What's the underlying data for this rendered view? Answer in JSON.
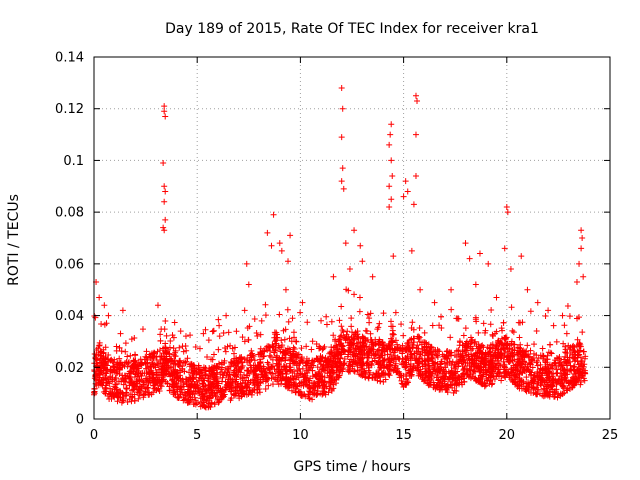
{
  "chart_data": {
    "type": "scatter",
    "title": "Day 189 of 2015, Rate Of TEC Index for receiver kra1",
    "xlabel": "GPS time / hours",
    "ylabel": "ROTI / TECUs",
    "xlim": [
      0,
      25
    ],
    "ylim": [
      0,
      0.14
    ],
    "x_ticks": [
      "0",
      "5",
      "10",
      "15",
      "20",
      "25"
    ],
    "y_ticks": [
      "0",
      "0.02",
      "0.04",
      "0.06",
      "0.08",
      "0.1",
      "0.12",
      "0.14"
    ],
    "grid": true,
    "marker": "+",
    "color": "#ff0000",
    "series": [
      {
        "name": "ROTI",
        "baseline_profile": [
          [
            0,
            0.017
          ],
          [
            0.3,
            0.022
          ],
          [
            0.6,
            0.016
          ],
          [
            1.2,
            0.014
          ],
          [
            2.0,
            0.015
          ],
          [
            3.0,
            0.018
          ],
          [
            3.5,
            0.02
          ],
          [
            4.2,
            0.015
          ],
          [
            5.0,
            0.013
          ],
          [
            5.5,
            0.012
          ],
          [
            6.0,
            0.014
          ],
          [
            7.0,
            0.016
          ],
          [
            8.0,
            0.018
          ],
          [
            8.8,
            0.022
          ],
          [
            9.5,
            0.019
          ],
          [
            10.5,
            0.015
          ],
          [
            11.5,
            0.018
          ],
          [
            12.1,
            0.027
          ],
          [
            13.0,
            0.024
          ],
          [
            14.0,
            0.022
          ],
          [
            14.5,
            0.026
          ],
          [
            15.0,
            0.02
          ],
          [
            15.6,
            0.025
          ],
          [
            16.5,
            0.019
          ],
          [
            17.5,
            0.018
          ],
          [
            18.2,
            0.024
          ],
          [
            19.0,
            0.02
          ],
          [
            20.0,
            0.024
          ],
          [
            20.5,
            0.02
          ],
          [
            21.5,
            0.017
          ],
          [
            22.5,
            0.016
          ],
          [
            23.5,
            0.022
          ],
          [
            23.8,
            0.018
          ]
        ],
        "outliers": [
          [
            0.1,
            0.053
          ],
          [
            0.25,
            0.047
          ],
          [
            0.5,
            0.044
          ],
          [
            0.7,
            0.04
          ],
          [
            1.4,
            0.042
          ],
          [
            3.1,
            0.044
          ],
          [
            3.4,
            0.121
          ],
          [
            3.4,
            0.119
          ],
          [
            3.45,
            0.117
          ],
          [
            3.35,
            0.099
          ],
          [
            3.4,
            0.09
          ],
          [
            3.45,
            0.088
          ],
          [
            3.4,
            0.084
          ],
          [
            3.45,
            0.077
          ],
          [
            3.35,
            0.074
          ],
          [
            3.4,
            0.073
          ],
          [
            4.2,
            0.034
          ],
          [
            5.3,
            0.033
          ],
          [
            6.4,
            0.04
          ],
          [
            7.3,
            0.042
          ],
          [
            7.4,
            0.06
          ],
          [
            7.5,
            0.052
          ],
          [
            8.4,
            0.072
          ],
          [
            8.7,
            0.079
          ],
          [
            8.6,
            0.067
          ],
          [
            9.0,
            0.068
          ],
          [
            9.1,
            0.065
          ],
          [
            9.5,
            0.071
          ],
          [
            9.4,
            0.061
          ],
          [
            9.3,
            0.05
          ],
          [
            10.1,
            0.045
          ],
          [
            11.0,
            0.038
          ],
          [
            11.6,
            0.055
          ],
          [
            12.0,
            0.128
          ],
          [
            12.05,
            0.12
          ],
          [
            12.0,
            0.109
          ],
          [
            12.05,
            0.097
          ],
          [
            12.0,
            0.092
          ],
          [
            12.1,
            0.089
          ],
          [
            12.2,
            0.068
          ],
          [
            12.6,
            0.073
          ],
          [
            12.9,
            0.067
          ],
          [
            13.0,
            0.061
          ],
          [
            12.4,
            0.058
          ],
          [
            13.5,
            0.055
          ],
          [
            14.3,
            0.106
          ],
          [
            14.4,
            0.114
          ],
          [
            14.35,
            0.11
          ],
          [
            14.4,
            0.1
          ],
          [
            14.45,
            0.094
          ],
          [
            14.3,
            0.09
          ],
          [
            14.4,
            0.085
          ],
          [
            14.3,
            0.082
          ],
          [
            14.5,
            0.063
          ],
          [
            15.0,
            0.086
          ],
          [
            15.1,
            0.092
          ],
          [
            15.2,
            0.088
          ],
          [
            15.6,
            0.125
          ],
          [
            15.65,
            0.123
          ],
          [
            15.6,
            0.11
          ],
          [
            15.6,
            0.094
          ],
          [
            15.5,
            0.083
          ],
          [
            15.4,
            0.065
          ],
          [
            15.8,
            0.05
          ],
          [
            16.5,
            0.045
          ],
          [
            17.3,
            0.05
          ],
          [
            18.0,
            0.068
          ],
          [
            18.2,
            0.062
          ],
          [
            18.5,
            0.052
          ],
          [
            18.7,
            0.064
          ],
          [
            19.1,
            0.06
          ],
          [
            19.5,
            0.047
          ],
          [
            20.0,
            0.082
          ],
          [
            20.05,
            0.08
          ],
          [
            19.9,
            0.066
          ],
          [
            20.2,
            0.058
          ],
          [
            20.7,
            0.063
          ],
          [
            21.0,
            0.05
          ],
          [
            21.5,
            0.045
          ],
          [
            22.0,
            0.042
          ],
          [
            22.7,
            0.04
          ],
          [
            23.4,
            0.053
          ],
          [
            23.6,
            0.073
          ],
          [
            23.65,
            0.07
          ],
          [
            23.6,
            0.066
          ],
          [
            23.5,
            0.06
          ],
          [
            23.7,
            0.055
          ]
        ]
      }
    ]
  }
}
